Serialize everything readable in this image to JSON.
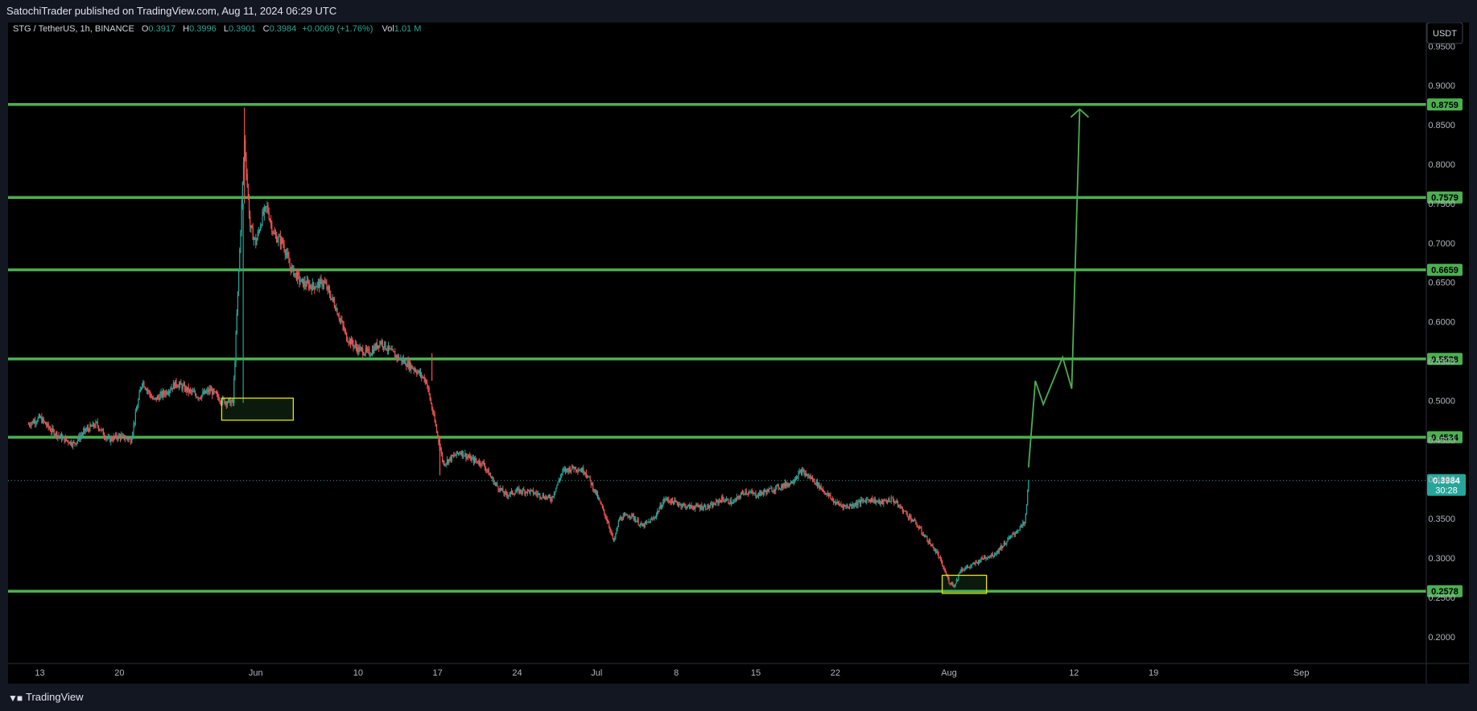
{
  "header": {
    "published_line": "SatochiTrader published on TradingView.com, Aug 11, 2024 06:29 UTC"
  },
  "footer": {
    "brand": "TradingView",
    "logo_icon": "tradingview-logo-icon"
  },
  "chart_data": {
    "type": "candlestick",
    "symbol_line": {
      "symbol": "STG / TetherUS, 1h, BINANCE",
      "o_label": "O",
      "o_value": "0.3917",
      "h_label": "H",
      "h_value": "0.3996",
      "l_label": "L",
      "l_value": "0.3901",
      "c_label": "C",
      "c_value": "0.3984",
      "change": "+0.0069 (+1.76%)",
      "vol_label": "Vol",
      "vol_value": "1.01 M"
    },
    "currency_button": "USDT",
    "y_ticks": [
      "0.9000",
      "0.8500",
      "0.8000",
      "0.7500",
      "0.7000",
      "0.6500",
      "0.6000",
      "0.5500",
      "0.5000",
      "0.4500",
      "0.4000",
      "0.3500",
      "0.3000",
      "0.2500",
      "0.2000",
      "0.9500"
    ],
    "y_tick_values": [
      0.9,
      0.85,
      0.8,
      0.75,
      0.7,
      0.65,
      0.6,
      0.55,
      0.5,
      0.45,
      0.4,
      0.35,
      0.3,
      0.25,
      0.2,
      0.95
    ],
    "ylim": [
      0.166,
      0.98
    ],
    "x_ticks": [
      {
        "label": "13",
        "day": 13
      },
      {
        "label": "20",
        "day": 20
      },
      {
        "label": "Jun",
        "day": 32
      },
      {
        "label": "10",
        "day": 41
      },
      {
        "label": "17",
        "day": 48
      },
      {
        "label": "24",
        "day": 55
      },
      {
        "label": "Jul",
        "day": 62
      },
      {
        "label": "8",
        "day": 69
      },
      {
        "label": "15",
        "day": 76
      },
      {
        "label": "22",
        "day": 83
      },
      {
        "label": "Aug",
        "day": 93
      },
      {
        "label": "12",
        "day": 104
      },
      {
        "label": "19",
        "day": 111
      },
      {
        "label": "Sep",
        "day": 124
      }
    ],
    "levels": [
      {
        "value": 0.8759,
        "label": "0.8759"
      },
      {
        "value": 0.7579,
        "label": "0.7579"
      },
      {
        "value": 0.6659,
        "label": "0.6659"
      },
      {
        "value": 0.5528,
        "label": "0.5528"
      },
      {
        "value": 0.4534,
        "label": "0.4534"
      },
      {
        "value": 0.2578,
        "label": "0.2578"
      }
    ],
    "last_price": {
      "value": 0.3984,
      "label": "0.3984",
      "countdown": "30:28"
    },
    "price_path": [
      [
        12.0,
        0.47
      ],
      [
        13.0,
        0.478
      ],
      [
        14.0,
        0.462
      ],
      [
        15.0,
        0.452
      ],
      [
        16.0,
        0.445
      ],
      [
        17.0,
        0.462
      ],
      [
        18.0,
        0.47
      ],
      [
        19.0,
        0.45
      ],
      [
        20.0,
        0.455
      ],
      [
        21.0,
        0.45
      ],
      [
        22.0,
        0.525
      ],
      [
        23.0,
        0.5
      ],
      [
        24.0,
        0.51
      ],
      [
        25.0,
        0.522
      ],
      [
        26.0,
        0.513
      ],
      [
        27.0,
        0.505
      ],
      [
        28.0,
        0.513
      ],
      [
        29.0,
        0.5
      ],
      [
        30.0,
        0.497
      ],
      [
        31.0,
        0.83
      ],
      [
        31.5,
        0.72
      ],
      [
        32.0,
        0.7
      ],
      [
        32.6,
        0.735
      ],
      [
        33.0,
        0.745
      ],
      [
        33.6,
        0.71
      ],
      [
        34.4,
        0.7
      ],
      [
        35.0,
        0.67
      ],
      [
        36.0,
        0.65
      ],
      [
        37.0,
        0.645
      ],
      [
        38.0,
        0.65
      ],
      [
        39.0,
        0.62
      ],
      [
        40.0,
        0.58
      ],
      [
        41.0,
        0.565
      ],
      [
        42.0,
        0.56
      ],
      [
        43.0,
        0.575
      ],
      [
        44.0,
        0.56
      ],
      [
        45.0,
        0.55
      ],
      [
        46.0,
        0.54
      ],
      [
        47.0,
        0.525
      ],
      [
        48.0,
        0.455
      ],
      [
        48.5,
        0.42
      ],
      [
        49.0,
        0.425
      ],
      [
        50.0,
        0.435
      ],
      [
        51.0,
        0.425
      ],
      [
        52.0,
        0.42
      ],
      [
        53.0,
        0.395
      ],
      [
        54.0,
        0.38
      ],
      [
        55.0,
        0.385
      ],
      [
        56.0,
        0.385
      ],
      [
        57.0,
        0.38
      ],
      [
        58.0,
        0.375
      ],
      [
        59.0,
        0.41
      ],
      [
        60.0,
        0.415
      ],
      [
        61.0,
        0.41
      ],
      [
        62.0,
        0.38
      ],
      [
        63.0,
        0.345
      ],
      [
        63.5,
        0.32
      ],
      [
        64.0,
        0.35
      ],
      [
        65.0,
        0.355
      ],
      [
        66.0,
        0.34
      ],
      [
        67.0,
        0.35
      ],
      [
        68.0,
        0.375
      ],
      [
        69.0,
        0.37
      ],
      [
        70.0,
        0.365
      ],
      [
        71.0,
        0.365
      ],
      [
        72.0,
        0.365
      ],
      [
        73.0,
        0.375
      ],
      [
        74.0,
        0.37
      ],
      [
        75.0,
        0.385
      ],
      [
        76.0,
        0.38
      ],
      [
        77.0,
        0.385
      ],
      [
        78.0,
        0.39
      ],
      [
        79.0,
        0.395
      ],
      [
        80.0,
        0.41
      ],
      [
        81.0,
        0.4
      ],
      [
        82.0,
        0.385
      ],
      [
        83.0,
        0.37
      ],
      [
        84.0,
        0.365
      ],
      [
        85.0,
        0.37
      ],
      [
        86.0,
        0.375
      ],
      [
        87.0,
        0.37
      ],
      [
        88.0,
        0.375
      ],
      [
        89.0,
        0.36
      ],
      [
        90.0,
        0.345
      ],
      [
        91.0,
        0.325
      ],
      [
        92.0,
        0.305
      ],
      [
        93.0,
        0.27
      ],
      [
        93.5,
        0.265
      ],
      [
        94.0,
        0.285
      ],
      [
        95.0,
        0.29
      ],
      [
        96.0,
        0.3
      ],
      [
        97.0,
        0.305
      ],
      [
        98.0,
        0.32
      ],
      [
        99.0,
        0.335
      ],
      [
        99.7,
        0.345
      ],
      [
        100.0,
        0.3984
      ]
    ],
    "annotation_boxes": [
      {
        "x0": 29.0,
        "x1": 35.3,
        "y0": 0.475,
        "y1": 0.503
      },
      {
        "x0": 92.4,
        "x1": 96.3,
        "y0": 0.255,
        "y1": 0.278
      }
    ],
    "forecast_path": [
      [
        100.0,
        0.415
      ],
      [
        100.6,
        0.525
      ],
      [
        101.3,
        0.495
      ],
      [
        103.0,
        0.555
      ],
      [
        103.8,
        0.515
      ],
      [
        104.5,
        0.87
      ]
    ]
  }
}
